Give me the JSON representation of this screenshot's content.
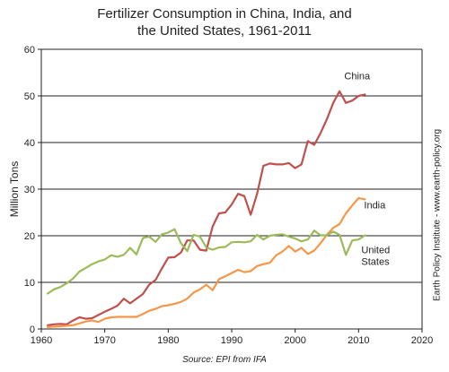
{
  "chart_data": {
    "type": "line",
    "title_line1": "Fertilizer Consumption in China, India, and",
    "title_line2": "the United States, 1961-2011",
    "xlabel": "",
    "ylabel": "Million Tons",
    "xlim": [
      1960,
      2020
    ],
    "ylim": [
      0,
      60
    ],
    "x_ticks": [
      1960,
      1970,
      1980,
      1990,
      2000,
      2010,
      2020
    ],
    "y_ticks": [
      0,
      10,
      20,
      30,
      40,
      50,
      60
    ],
    "grid": "horizontal",
    "side_credit": "Earth Policy Institute - www.earth-policy.org",
    "source": "Source: EPI from IFA",
    "x": [
      1961,
      1962,
      1963,
      1964,
      1965,
      1966,
      1967,
      1968,
      1969,
      1970,
      1971,
      1972,
      1973,
      1974,
      1975,
      1976,
      1977,
      1978,
      1979,
      1980,
      1981,
      1982,
      1983,
      1984,
      1985,
      1986,
      1987,
      1988,
      1989,
      1990,
      1991,
      1992,
      1993,
      1994,
      1995,
      1996,
      1997,
      1998,
      1999,
      2000,
      2001,
      2002,
      2003,
      2004,
      2005,
      2006,
      2007,
      2008,
      2009,
      2010,
      2011
    ],
    "series": [
      {
        "name": "China",
        "color": "#c0504d",
        "label_lines": [
          "China"
        ],
        "values": [
          0.8,
          1.0,
          1.1,
          1.0,
          1.8,
          2.5,
          2.2,
          2.3,
          3.0,
          3.7,
          4.3,
          5.0,
          6.5,
          5.5,
          6.5,
          7.5,
          9.5,
          10.5,
          13.0,
          15.3,
          15.4,
          16.4,
          19.0,
          19.0,
          17.0,
          16.8,
          22.0,
          24.8,
          25.0,
          26.7,
          29.0,
          28.5,
          24.5,
          29.0,
          35.0,
          35.5,
          35.3,
          35.3,
          35.6,
          34.5,
          35.3,
          40.3,
          39.5,
          42.0,
          45.0,
          48.5,
          51.0,
          48.5,
          49.0,
          50.0,
          50.3
        ]
      },
      {
        "name": "India",
        "color": "#f79646",
        "label_lines": [
          "India"
        ],
        "values": [
          0.4,
          0.5,
          0.6,
          0.7,
          0.8,
          1.2,
          1.6,
          1.8,
          1.5,
          2.2,
          2.5,
          2.6,
          2.6,
          2.6,
          2.6,
          3.2,
          3.9,
          4.3,
          4.9,
          5.1,
          5.4,
          5.8,
          6.5,
          7.8,
          8.5,
          9.5,
          8.3,
          10.7,
          11.3,
          12.0,
          12.7,
          12.2,
          12.4,
          13.5,
          13.9,
          14.2,
          15.8,
          16.6,
          17.8,
          16.6,
          17.4,
          16.1,
          16.8,
          18.4,
          20.2,
          21.7,
          22.5,
          24.8,
          26.5,
          28.1,
          27.8
        ]
      },
      {
        "name": "United States",
        "color": "#9bbb59",
        "label_lines": [
          "United",
          "States"
        ],
        "values": [
          7.6,
          8.5,
          9.0,
          9.8,
          10.8,
          12.3,
          13.1,
          13.9,
          14.5,
          14.9,
          15.8,
          15.5,
          15.9,
          17.4,
          16.0,
          19.5,
          19.8,
          18.7,
          20.3,
          20.7,
          21.4,
          18.4,
          16.7,
          20.2,
          19.8,
          17.5,
          17.0,
          17.5,
          17.6,
          18.6,
          18.7,
          18.6,
          18.8,
          20.2,
          19.2,
          20.0,
          20.2,
          20.3,
          19.8,
          19.4,
          18.8,
          19.2,
          21.1,
          20.1,
          20.1,
          20.9,
          20.2,
          15.9,
          19.0,
          19.2,
          20.1
        ]
      }
    ]
  }
}
